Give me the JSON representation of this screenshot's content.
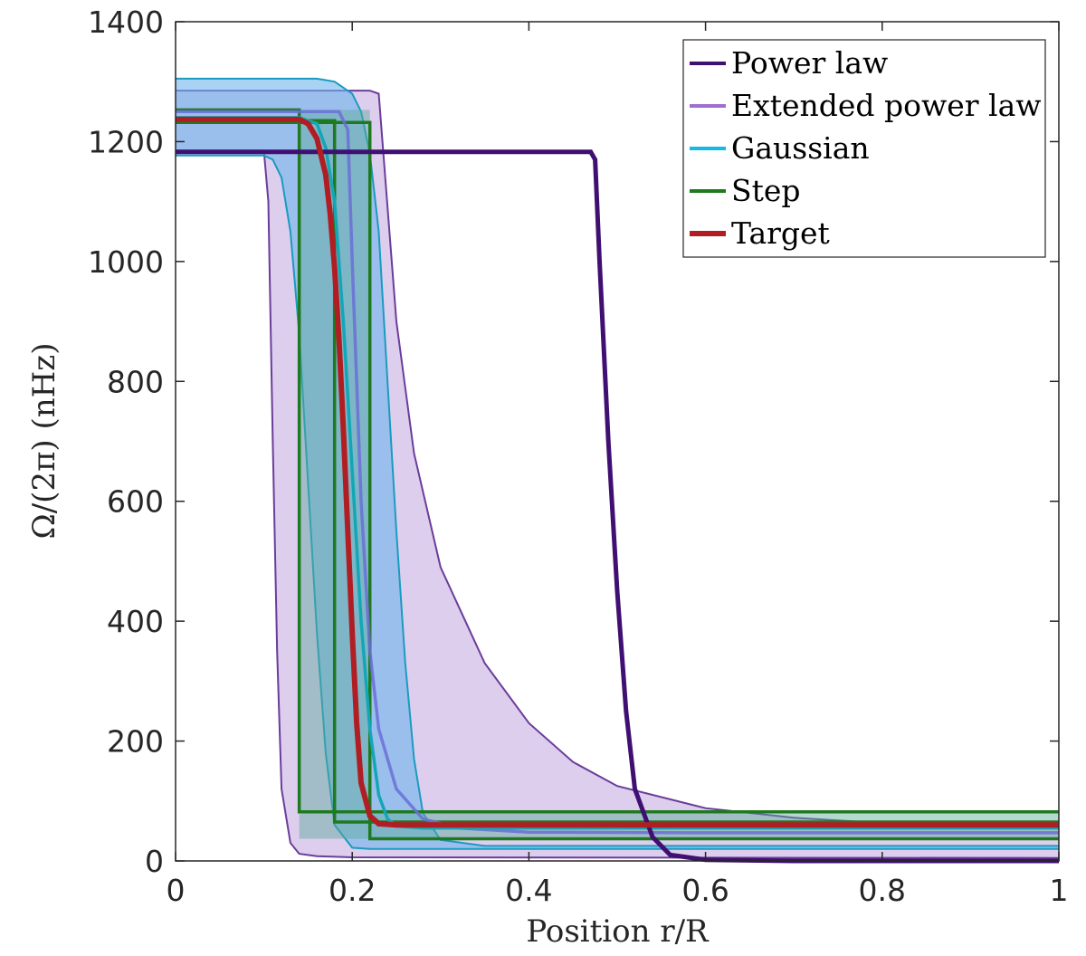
{
  "chart_data": {
    "type": "line",
    "xlabel": "Position r/R",
    "ylabel": "Ω/(2π) (nHz)",
    "xlim": [
      0,
      1
    ],
    "ylim": [
      0,
      1400
    ],
    "xticks": [
      0,
      0.2,
      0.4,
      0.6,
      0.8,
      1
    ],
    "xtick_labels": [
      "0",
      "0.2",
      "0.4",
      "0.6",
      "0.8",
      "1"
    ],
    "yticks": [
      0,
      200,
      400,
      600,
      800,
      1000,
      1200,
      1400
    ],
    "ytick_labels": [
      "0",
      "200",
      "400",
      "600",
      "800",
      "1000",
      "1200",
      "1400"
    ],
    "grid": false,
    "legend_position": "top-right",
    "colors": {
      "Power law": "#3f0f72",
      "Extended power law": "#9c6fd0",
      "Gaussian": "#15b9e8",
      "Step": "#1f7a1f",
      "Target": "#b01e23",
      "band_extended": "#c7aee3",
      "band_gaussian": "#6fb5ec",
      "band_step": "#5aa89a"
    },
    "series": [
      {
        "name": "Power law",
        "x": [
          0,
          0.47,
          0.475,
          0.48,
          0.49,
          0.5,
          0.51,
          0.52,
          0.54,
          0.56,
          0.6,
          0.7,
          1.0
        ],
        "y": [
          1183,
          1183,
          1170,
          1000,
          700,
          450,
          250,
          120,
          40,
          10,
          2,
          0,
          0
        ]
      },
      {
        "name": "Extended power law",
        "band_upper": {
          "x": [
            0,
            0.22,
            0.23,
            0.25,
            0.27,
            0.3,
            0.35,
            0.4,
            0.45,
            0.5,
            0.6,
            0.7,
            0.8,
            0.9,
            1.0
          ],
          "y": [
            1285,
            1285,
            1280,
            900,
            680,
            490,
            330,
            230,
            165,
            125,
            88,
            72,
            63,
            58,
            55
          ]
        },
        "band_lower": {
          "x": [
            0,
            0.1,
            0.105,
            0.11,
            0.115,
            0.12,
            0.13,
            0.14,
            0.16,
            0.2,
            1.0
          ],
          "y": [
            1185,
            1185,
            1100,
            700,
            350,
            120,
            30,
            12,
            8,
            6,
            5
          ]
        },
        "median": {
          "x": [
            0,
            0.185,
            0.195,
            0.2,
            0.21,
            0.22,
            0.23,
            0.25,
            0.28,
            0.32,
            0.4,
            0.6,
            1.0
          ],
          "y": [
            1250,
            1250,
            1220,
            1000,
            600,
            350,
            220,
            120,
            70,
            55,
            48,
            47,
            47
          ]
        }
      },
      {
        "name": "Gaussian",
        "band_upper": {
          "x": [
            0,
            0.16,
            0.18,
            0.2,
            0.21,
            0.22,
            0.23,
            0.24,
            0.25,
            0.26,
            0.27,
            0.28,
            0.3,
            0.35,
            1.0
          ],
          "y": [
            1305,
            1305,
            1300,
            1280,
            1250,
            1180,
            1050,
            800,
            550,
            330,
            170,
            80,
            35,
            25,
            25
          ]
        },
        "band_lower": {
          "x": [
            0,
            0.1,
            0.11,
            0.12,
            0.13,
            0.14,
            0.15,
            0.16,
            0.17,
            0.18,
            0.2,
            0.22,
            1.0
          ],
          "y": [
            1177,
            1177,
            1170,
            1140,
            1050,
            880,
            630,
            380,
            180,
            60,
            22,
            20,
            20
          ]
        },
        "median": {
          "x": [
            0,
            0.14,
            0.16,
            0.17,
            0.18,
            0.19,
            0.2,
            0.21,
            0.22,
            0.23,
            0.24,
            0.25,
            0.28,
            1.0
          ],
          "y": [
            1240,
            1240,
            1230,
            1190,
            1100,
            900,
            650,
            400,
            220,
            110,
            70,
            58,
            55,
            55
          ]
        }
      },
      {
        "name": "Step",
        "edges": [
          0.14,
          0.18,
          0.22
        ],
        "levels_high": [
          1253,
          1235,
          1232
        ],
        "levels_low": [
          82,
          65,
          37
        ]
      },
      {
        "name": "Target",
        "x": [
          0,
          0.14,
          0.15,
          0.16,
          0.17,
          0.175,
          0.18,
          0.185,
          0.19,
          0.195,
          0.2,
          0.205,
          0.21,
          0.22,
          0.23,
          0.25,
          0.3,
          1.0
        ],
        "y": [
          1237,
          1237,
          1230,
          1205,
          1145,
          1080,
          990,
          870,
          720,
          550,
          380,
          230,
          130,
          75,
          62,
          60,
          60,
          60
        ]
      }
    ]
  }
}
